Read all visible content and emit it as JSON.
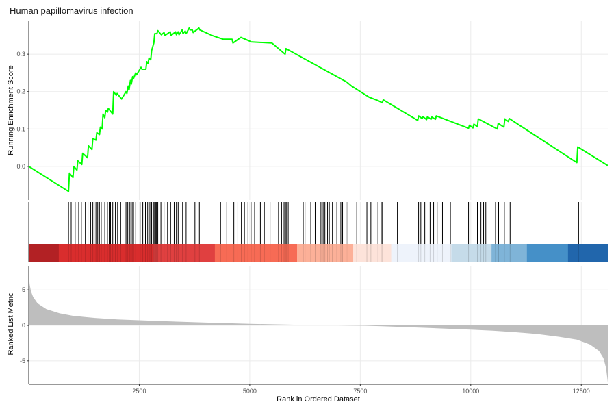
{
  "chart_data": {
    "type": "line",
    "title": "Human papillomavirus infection",
    "xlabel": "Rank in Ordered Dataset",
    "xlim": [
      0,
      13100
    ],
    "x_ticks": [
      2500,
      5000,
      7500,
      10000,
      12500
    ],
    "colors": {
      "es_line": "#00ff00",
      "metric_fill": "#bebebe",
      "hit_line": "#000000",
      "grid": "#ebebeb",
      "axis": "#333333"
    },
    "panels": {
      "enrichment": {
        "ylabel": "Running Enrichment Score",
        "ylim": [
          -0.09,
          0.39
        ],
        "y_ticks": [
          0.0,
          0.1,
          0.2,
          0.3
        ],
        "y_tick_labels": [
          "0.0",
          "0.1",
          "0.2",
          "0.3"
        ],
        "es_curve": {
          "x": [
            0,
            900,
            920,
            1000,
            1020,
            1090,
            1110,
            1200,
            1220,
            1330,
            1350,
            1430,
            1450,
            1520,
            1540,
            1600,
            1620,
            1660,
            1680,
            1720,
            1740,
            1780,
            1800,
            1900,
            1920,
            1980,
            2000,
            2100,
            2200,
            2220,
            2250,
            2270,
            2300,
            2320,
            2350,
            2370,
            2420,
            2440,
            2540,
            2560,
            2650,
            2670,
            2700,
            2720,
            2760,
            2780,
            2830,
            2850,
            2900,
            2920,
            3000,
            3060,
            3080,
            3200,
            3220,
            3320,
            3340,
            3380,
            3400,
            3470,
            3490,
            3540,
            3560,
            3630,
            3650,
            3700,
            3720,
            3850,
            3870,
            4150,
            4200,
            4400,
            4600,
            4620,
            4800,
            5000,
            5020,
            5500,
            5800,
            5820,
            7200,
            7300,
            7500,
            7700,
            7900,
            8000,
            8020,
            8800,
            8820,
            8900,
            8920,
            9000,
            9020,
            9100,
            9120,
            9200,
            9220,
            9950,
            9970,
            10050,
            10070,
            10150,
            10170,
            10600,
            10620,
            10750,
            10770,
            10850,
            10870,
            12400,
            12420,
            13100
          ],
          "y": [
            0.0,
            -0.067,
            -0.018,
            -0.03,
            0.0,
            -0.01,
            0.015,
            0.005,
            0.035,
            0.023,
            0.055,
            0.045,
            0.075,
            0.07,
            0.09,
            0.085,
            0.105,
            0.1,
            0.14,
            0.13,
            0.15,
            0.145,
            0.155,
            0.14,
            0.2,
            0.19,
            0.195,
            0.18,
            0.2,
            0.195,
            0.215,
            0.205,
            0.23,
            0.22,
            0.24,
            0.235,
            0.25,
            0.245,
            0.265,
            0.26,
            0.26,
            0.28,
            0.275,
            0.29,
            0.285,
            0.31,
            0.33,
            0.355,
            0.355,
            0.363,
            0.352,
            0.358,
            0.35,
            0.36,
            0.35,
            0.36,
            0.352,
            0.36,
            0.352,
            0.365,
            0.355,
            0.362,
            0.355,
            0.37,
            0.365,
            0.365,
            0.358,
            0.37,
            0.365,
            0.35,
            0.348,
            0.34,
            0.34,
            0.33,
            0.345,
            0.335,
            0.333,
            0.33,
            0.3,
            0.315,
            0.225,
            0.215,
            0.2,
            0.185,
            0.176,
            0.17,
            0.178,
            0.123,
            0.135,
            0.128,
            0.133,
            0.125,
            0.133,
            0.126,
            0.132,
            0.126,
            0.135,
            0.102,
            0.11,
            0.103,
            0.113,
            0.106,
            0.127,
            0.1,
            0.115,
            0.105,
            0.127,
            0.12,
            0.128,
            0.01,
            0.052,
            0.002
          ]
        }
      },
      "hits": {
        "positions": [
          900,
          960,
          1050,
          1130,
          1190,
          1280,
          1340,
          1400,
          1450,
          1480,
          1520,
          1560,
          1600,
          1640,
          1680,
          1720,
          1780,
          1820,
          1850,
          1900,
          1960,
          2010,
          2080,
          2200,
          2240,
          2280,
          2310,
          2340,
          2370,
          2420,
          2470,
          2520,
          2580,
          2640,
          2690,
          2740,
          2780,
          2810,
          2830,
          2850,
          2870,
          2890,
          2920,
          2990,
          3060,
          3140,
          3210,
          3290,
          3340,
          3380,
          3480,
          3560,
          3760,
          3860,
          4340,
          4480,
          4640,
          4730,
          4810,
          4880,
          4960,
          5030,
          5110,
          5240,
          5330,
          5460,
          5650,
          5720,
          5760,
          5790,
          5820,
          5840,
          5870,
          6210,
          6250,
          6380,
          6480,
          6610,
          6660,
          6700,
          6760,
          6800,
          6870,
          6970,
          7060,
          7100,
          7180,
          7220,
          7420,
          7650,
          7740,
          7900,
          7990,
          8010,
          8340,
          8820,
          8870,
          8960,
          9080,
          9160,
          9240,
          9360,
          9540,
          9950,
          10150,
          10230,
          10290,
          10340,
          10460,
          10560,
          10630,
          10760,
          10890,
          12440
        ]
      },
      "color_bar": {
        "segments": [
          {
            "start": 0,
            "end": 680,
            "color": "#b22124"
          },
          {
            "start": 680,
            "end": 2820,
            "color": "#d92d2d"
          },
          {
            "start": 2820,
            "end": 4210,
            "color": "#e04040"
          },
          {
            "start": 4210,
            "end": 6070,
            "color": "#f76b55"
          },
          {
            "start": 6070,
            "end": 7340,
            "color": "#fcb098"
          },
          {
            "start": 7340,
            "end": 8200,
            "color": "#fde3da"
          },
          {
            "start": 8200,
            "end": 9560,
            "color": "#eef3fb"
          },
          {
            "start": 9560,
            "end": 10470,
            "color": "#c5dbe9"
          },
          {
            "start": 10470,
            "end": 11270,
            "color": "#7fb4d8"
          },
          {
            "start": 11270,
            "end": 12200,
            "color": "#4590c8"
          },
          {
            "start": 12200,
            "end": 13100,
            "color": "#2166ac"
          }
        ]
      },
      "ranked_metric": {
        "ylabel": "Ranked List Metric",
        "ylim": [
          -8.3,
          8.4
        ],
        "y_ticks": [
          -5,
          0,
          5
        ],
        "y_tick_labels": [
          "-5",
          "0",
          "5"
        ],
        "curve": {
          "x": [
            0,
            20,
            50,
            100,
            200,
            400,
            700,
            1000,
            1500,
            2000,
            3000,
            4000,
            5000,
            6000,
            7000,
            7600,
            8000,
            9000,
            10000,
            10500,
            11000,
            11500,
            12000,
            12400,
            12700,
            12900,
            13000,
            13060,
            13100
          ],
          "y": [
            7.3,
            5.8,
            4.8,
            4.0,
            3.1,
            2.3,
            1.7,
            1.35,
            1.05,
            0.85,
            0.6,
            0.4,
            0.22,
            0.1,
            0.0,
            -0.05,
            -0.12,
            -0.35,
            -0.6,
            -0.75,
            -0.95,
            -1.2,
            -1.6,
            -2.0,
            -2.7,
            -3.6,
            -4.6,
            -6.0,
            -8.0
          ]
        }
      }
    }
  }
}
